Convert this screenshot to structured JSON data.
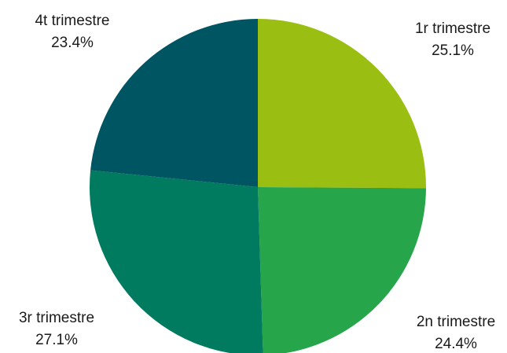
{
  "chart_data": {
    "type": "pie",
    "categories": [
      "1r trimestre",
      "2n trimestre",
      "3r trimestre",
      "4t trimestre"
    ],
    "values": [
      25.1,
      24.4,
      27.1,
      23.4
    ],
    "value_labels": [
      "25.1%",
      "24.4%",
      "27.1%",
      "23.4%"
    ],
    "colors": [
      "#9ABF12",
      "#27A54A",
      "#007B5F",
      "#005562"
    ],
    "start_angle": "12 o'clock",
    "direction": "clockwise",
    "legend": "none"
  }
}
